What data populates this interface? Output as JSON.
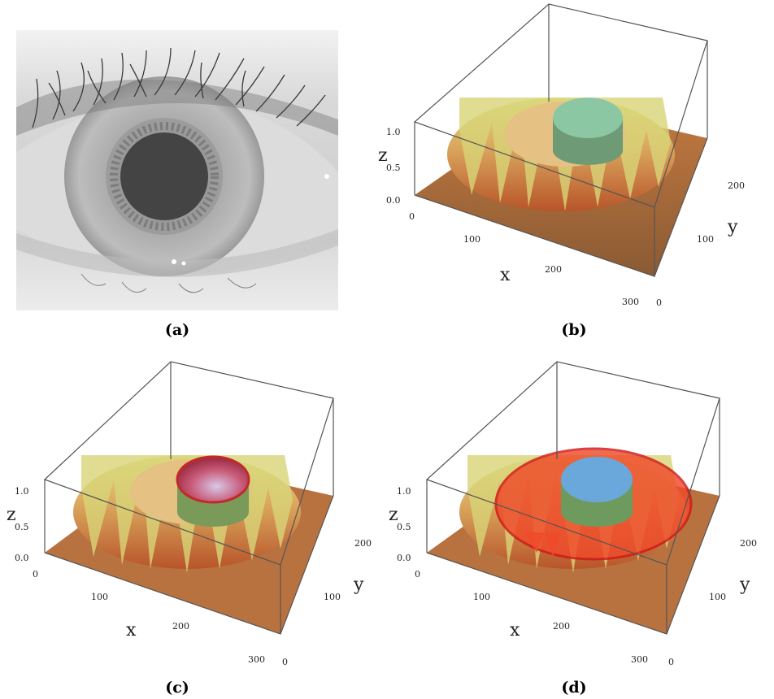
{
  "captions": {
    "a": "(a)",
    "b": "(b)",
    "c": "(c)",
    "d": "(d)"
  },
  "axes": {
    "x_label": "x",
    "y_label": "y",
    "z_label": "z",
    "x_ticks": [
      "0",
      "100",
      "200",
      "300"
    ],
    "y_ticks": [
      "0",
      "100",
      "200"
    ],
    "z_ticks": [
      "0.0",
      "0.5",
      "1.0"
    ]
  },
  "colors": {
    "terrain_low": "#b8542a",
    "terrain_mid": "#d9a55c",
    "terrain_high": "#e3e08a",
    "pupil_b": "#8cc7a4",
    "pupil_c": "#c85a78",
    "pupil_d": "#6aa8dc",
    "iris_overlay_d": "#f04a2a"
  }
}
